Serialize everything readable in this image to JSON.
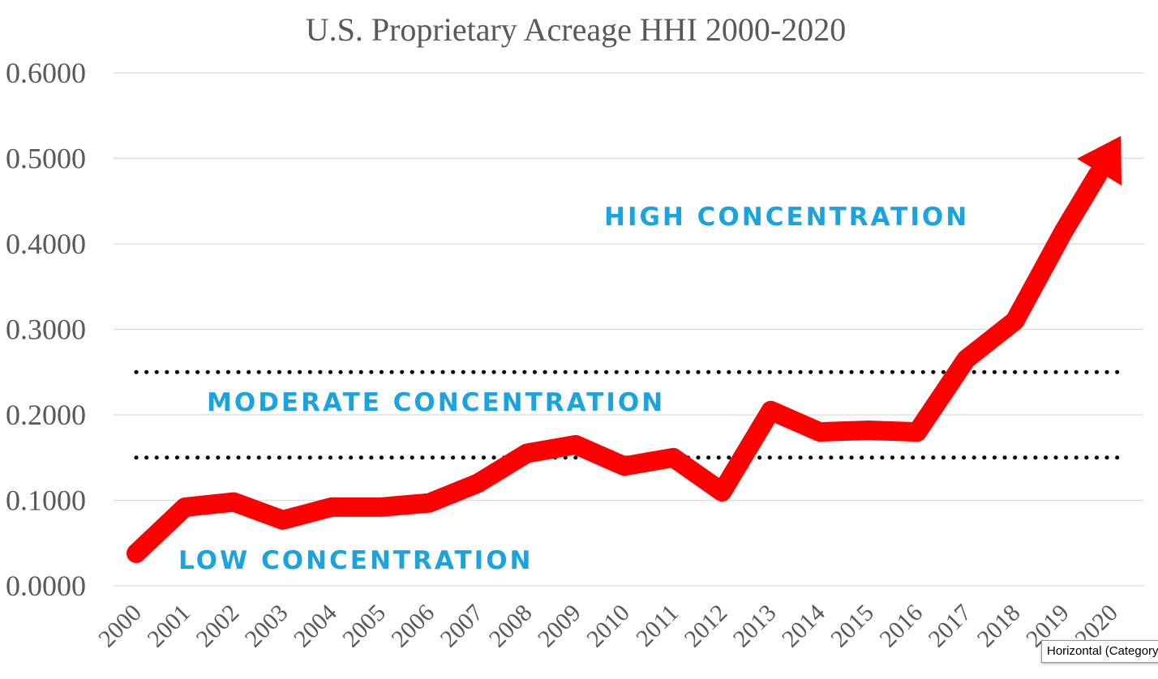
{
  "chart_data": {
    "type": "line",
    "title": "U.S. Proprietary Acreage HHI 2000-2020",
    "categories": [
      "2000",
      "2001",
      "2002",
      "2003",
      "2004",
      "2005",
      "2006",
      "2007",
      "2008",
      "2009",
      "2010",
      "2011",
      "2012",
      "2013",
      "2014",
      "2015",
      "2016",
      "2017",
      "2018",
      "2019",
      "2020"
    ],
    "values": [
      0.038,
      0.092,
      0.098,
      0.077,
      0.092,
      0.092,
      0.097,
      0.12,
      0.155,
      0.165,
      0.14,
      0.15,
      0.11,
      0.205,
      0.18,
      0.182,
      0.18,
      0.265,
      0.31,
      0.415,
      0.51
    ],
    "ylim": [
      0,
      0.6
    ],
    "yticks": [
      "0.0000",
      "0.1000",
      "0.2000",
      "0.3000",
      "0.4000",
      "0.5000",
      "0.6000"
    ],
    "ytick_values": [
      0,
      0.1,
      0.2,
      0.3,
      0.4,
      0.5,
      0.6
    ],
    "grid": true,
    "line_color": "#ff0000",
    "end_marker": "arrow",
    "thresholds": [
      0.15,
      0.25
    ],
    "threshold_style": "dotted",
    "annotations": {
      "high": "HIGH CONCENTRATION",
      "moderate": "MODERATE CONCENTRATION",
      "low": "LOW CONCENTRATION"
    },
    "annotation_color": "#1aa3e0"
  },
  "tooltip": {
    "text": "Horizontal (Category) Axis"
  }
}
